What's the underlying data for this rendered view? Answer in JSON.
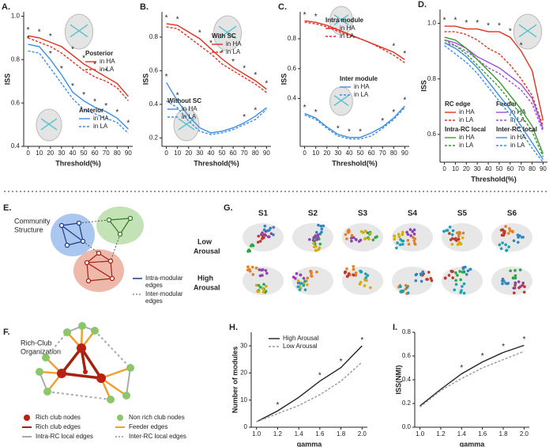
{
  "chart_data": [
    {
      "type": "line",
      "panel": "A.",
      "xlabel": "Threshold(%)",
      "ylabel": "ISS",
      "x": [
        0,
        10,
        20,
        30,
        40,
        50,
        60,
        70,
        80,
        90
      ],
      "xlim": [
        -4,
        94
      ],
      "xticks": [
        0,
        10,
        20,
        30,
        40,
        50,
        60,
        70,
        80,
        90
      ],
      "ylim": [
        0.4,
        1.02
      ],
      "yticks": [
        0.4,
        0.6,
        0.8,
        {
          "value": 1,
          "label": "1.0"
        }
      ],
      "groups": [
        {
          "title": "Posterior",
          "marker": "*",
          "significant_x": [
            0,
            10,
            20,
            40,
            50,
            60,
            70
          ],
          "series": [
            {
              "name": "in HA",
              "color": "#e0301e",
              "style": "solid",
              "values": [
                0.91,
                0.9,
                0.88,
                0.86,
                0.82,
                0.78,
                0.75,
                0.72,
                0.69,
                0.63
              ]
            },
            {
              "name": "in LA",
              "color": "#e0301e",
              "style": "dashed",
              "values": [
                0.9,
                0.88,
                0.86,
                0.83,
                0.79,
                0.75,
                0.72,
                0.7,
                0.67,
                0.61
              ]
            }
          ]
        },
        {
          "title": "Anterior",
          "marker": "*",
          "significant_x": [
            0,
            20,
            30,
            40,
            50,
            60,
            70,
            80,
            90
          ],
          "series": [
            {
              "name": "in HA",
              "color": "#3a8ee6",
              "style": "solid",
              "values": [
                0.87,
                0.86,
                0.8,
                0.73,
                0.65,
                0.61,
                0.58,
                0.56,
                0.53,
                0.48
              ]
            },
            {
              "name": "in LA",
              "color": "#3a8ee6",
              "style": "dashed",
              "values": [
                0.84,
                0.83,
                0.76,
                0.69,
                0.62,
                0.57,
                0.55,
                0.53,
                0.51,
                0.46
              ]
            }
          ]
        }
      ]
    },
    {
      "type": "line",
      "panel": "B.",
      "xlabel": "Threshold(%)",
      "ylabel": "ISS",
      "x": [
        0,
        10,
        20,
        30,
        40,
        50,
        60,
        70,
        80,
        90
      ],
      "xlim": [
        -4,
        94
      ],
      "xticks": [
        0,
        10,
        20,
        30,
        40,
        50,
        60,
        70,
        80,
        90
      ],
      "ylim": [
        0.15,
        0.95
      ],
      "yticks": [
        0.2,
        0.4,
        0.6,
        0.8
      ],
      "groups": [
        {
          "title": "With SC",
          "marker": "*",
          "significant_x": [
            0,
            10,
            30,
            40,
            50,
            60,
            70,
            80,
            90
          ],
          "series": [
            {
              "name": "in HA",
              "color": "#e0301e",
              "style": "solid",
              "values": [
                0.88,
                0.87,
                0.83,
                0.79,
                0.73,
                0.67,
                0.62,
                0.58,
                0.54,
                0.49
              ]
            },
            {
              "name": "in LA",
              "color": "#e0301e",
              "style": "dashed",
              "values": [
                0.86,
                0.85,
                0.8,
                0.75,
                0.7,
                0.64,
                0.6,
                0.56,
                0.52,
                0.47
              ]
            }
          ]
        },
        {
          "title": "Without SC",
          "marker": "*",
          "significant_x": [
            0,
            10,
            70,
            80
          ],
          "series": [
            {
              "name": "in HA",
              "color": "#3a8ee6",
              "style": "solid",
              "values": [
                0.53,
                0.42,
                0.33,
                0.26,
                0.23,
                0.24,
                0.26,
                0.29,
                0.33,
                0.38
              ]
            },
            {
              "name": "in LA",
              "color": "#3a8ee6",
              "style": "dashed",
              "values": [
                0.42,
                0.38,
                0.3,
                0.24,
                0.22,
                0.23,
                0.25,
                0.28,
                0.31,
                0.37
              ]
            }
          ]
        }
      ]
    },
    {
      "type": "line",
      "panel": "C.",
      "xlabel": "Threshold(%)",
      "ylabel": "ISS",
      "x": [
        0,
        10,
        20,
        30,
        40,
        50,
        60,
        70,
        80,
        90
      ],
      "xlim": [
        -4,
        94
      ],
      "xticks": [
        0,
        10,
        20,
        30,
        40,
        50,
        60,
        70,
        80,
        90
      ],
      "ylim": [
        0.08,
        0.98
      ],
      "yticks": [
        0.4,
        0.6,
        0.8
      ],
      "groups": [
        {
          "title": "Intra module",
          "marker": "*",
          "significant_x": [
            0,
            10,
            80,
            90
          ],
          "series": [
            {
              "name": "in HA",
              "color": "#e0301e",
              "style": "solid",
              "values": [
                0.92,
                0.91,
                0.89,
                0.86,
                0.83,
                0.8,
                0.77,
                0.74,
                0.71,
                0.66
              ]
            },
            {
              "name": "in LA",
              "color": "#e0301e",
              "style": "dashed",
              "values": [
                0.91,
                0.9,
                0.88,
                0.85,
                0.82,
                0.8,
                0.77,
                0.73,
                0.69,
                0.64
              ]
            }
          ]
        },
        {
          "title": "Inter module",
          "marker": "*",
          "significant_x": [
            0,
            10,
            30,
            40,
            50,
            70,
            80,
            90
          ],
          "series": [
            {
              "name": "in HA",
              "color": "#3a8ee6",
              "style": "solid",
              "values": [
                0.3,
                0.27,
                0.21,
                0.16,
                0.14,
                0.14,
                0.17,
                0.21,
                0.27,
                0.35
              ]
            },
            {
              "name": "in LA",
              "color": "#3a8ee6",
              "style": "dashed",
              "values": [
                0.29,
                0.26,
                0.2,
                0.15,
                0.13,
                0.13,
                0.15,
                0.2,
                0.26,
                0.34
              ]
            }
          ]
        }
      ]
    },
    {
      "type": "line",
      "panel": "D.",
      "xlabel": "Threshold(%)",
      "ylabel": "ISS",
      "x": [
        0,
        10,
        20,
        30,
        40,
        50,
        60,
        70,
        80,
        90
      ],
      "xlim": [
        -4,
        94
      ],
      "xticks": [
        0,
        10,
        20,
        30,
        40,
        50,
        60,
        70,
        80,
        90
      ],
      "ylim": [
        0.5,
        1.05
      ],
      "yticks": [
        0.6,
        0.8,
        {
          "value": 1,
          "label": "1.0"
        }
      ],
      "groups": [
        {
          "title": "RC edge",
          "marker": "*",
          "significant_x": [
            0,
            10,
            20,
            30,
            40,
            50,
            60,
            70
          ],
          "series": [
            {
              "name": "in HA",
              "color": "#e0301e",
              "style": "solid",
              "values": [
                0.99,
                0.99,
                0.98,
                0.98,
                0.97,
                0.97,
                0.95,
                0.9,
                0.83,
                0.65
              ]
            },
            {
              "name": "in LA",
              "color": "#e0301e",
              "style": "dashed",
              "values": [
                0.97,
                0.97,
                0.96,
                0.94,
                0.91,
                0.89,
                0.85,
                0.8,
                0.74,
                0.63
              ]
            }
          ]
        },
        {
          "title": "Feeder",
          "series": [
            {
              "name": "in HA",
              "color": "#9b4fd6",
              "style": "solid",
              "values": [
                0.94,
                0.93,
                0.91,
                0.88,
                0.86,
                0.84,
                0.81,
                0.78,
                0.73,
                0.62
              ]
            },
            {
              "name": "in LA",
              "color": "#9b4fd6",
              "style": "dashed",
              "values": [
                0.93,
                0.92,
                0.9,
                0.87,
                0.84,
                0.82,
                0.79,
                0.76,
                0.71,
                0.61
              ]
            }
          ]
        },
        {
          "title": "Intra-RC local",
          "series": [
            {
              "name": "in HA",
              "color": "#3a9a2e",
              "style": "solid",
              "values": [
                0.95,
                0.94,
                0.91,
                0.87,
                0.83,
                0.79,
                0.74,
                0.69,
                0.63,
                0.53
              ]
            },
            {
              "name": "in LA",
              "color": "#3a9a2e",
              "style": "dashed",
              "values": [
                0.94,
                0.92,
                0.89,
                0.85,
                0.81,
                0.77,
                0.72,
                0.67,
                0.61,
                0.52
              ]
            }
          ]
        },
        {
          "title": "Inter-RC local",
          "series": [
            {
              "name": "in HA",
              "color": "#3a8ee6",
              "style": "solid",
              "values": [
                0.93,
                0.91,
                0.88,
                0.84,
                0.79,
                0.74,
                0.69,
                0.63,
                0.57,
                0.51
              ]
            },
            {
              "name": "in LA",
              "color": "#3a8ee6",
              "style": "dashed",
              "values": [
                0.92,
                0.89,
                0.86,
                0.82,
                0.77,
                0.72,
                0.67,
                0.61,
                0.55,
                0.5
              ]
            }
          ]
        }
      ]
    },
    {
      "type": "line",
      "panel": "H.",
      "xlabel": "gamma",
      "ylabel": "Number of  modules",
      "x": [
        1.0,
        1.2,
        1.4,
        1.6,
        1.8,
        2.0
      ],
      "xlim": [
        0.95,
        2.05
      ],
      "xticks": [
        {
          "value": 1,
          "label": "1.0"
        },
        1.2,
        1.4,
        1.6,
        1.8,
        {
          "value": 2,
          "label": "2.0"
        }
      ],
      "ylim": [
        0,
        35
      ],
      "yticks": [
        0,
        10,
        20,
        30
      ],
      "groups": [
        {
          "marker": "*",
          "significant_x": [
            1.2,
            1.6,
            1.8,
            2.0
          ],
          "series": [
            {
              "name": "High Arousal",
              "color": "#222222",
              "style": "solid",
              "values": [
                2,
                6,
                11,
                17,
                22,
                30
              ]
            },
            {
              "name": "Low Arousal",
              "color": "#999999",
              "style": "dashed",
              "values": [
                2,
                5,
                8,
                12,
                17,
                24
              ]
            }
          ]
        }
      ]
    },
    {
      "type": "line",
      "panel": "I.",
      "xlabel": "gamma",
      "ylabel": "ISS(NMI)",
      "x": [
        1.0,
        1.2,
        1.4,
        1.6,
        1.8,
        2.0
      ],
      "xlim": [
        0.95,
        2.05
      ],
      "xticks": [
        {
          "value": 1,
          "label": "1.0"
        },
        1.2,
        1.4,
        1.6,
        1.8,
        {
          "value": 2,
          "label": "2.0"
        }
      ],
      "ylim": [
        0,
        0.8
      ],
      "yticks": [
        {
          "value": 0,
          "label": "0.0"
        },
        0.2,
        0.4,
        0.6,
        0.8
      ],
      "groups": [
        {
          "marker": "*",
          "significant_x": [
            1.4,
            1.6,
            1.8,
            2.0
          ],
          "series": [
            {
              "name": "High Arousal",
              "color": "#222222",
              "style": "solid",
              "values": [
                0.18,
                0.32,
                0.45,
                0.55,
                0.63,
                0.69
              ]
            },
            {
              "name": "Low Arousal",
              "color": "#999999",
              "style": "dashed",
              "values": [
                0.17,
                0.31,
                0.41,
                0.5,
                0.57,
                0.64
              ]
            }
          ]
        }
      ]
    }
  ],
  "diagram_E": {
    "panel": "E.",
    "title_lines": [
      "Community",
      "Structure"
    ],
    "legend": [
      {
        "lines": [
          "Intra-modular",
          "edges"
        ]
      },
      {
        "lines": [
          "Inter-modular",
          "edges"
        ]
      }
    ]
  },
  "diagram_F": {
    "panel": "F.",
    "title_lines": [
      "Rich-Club",
      "Organization"
    ],
    "legend": [
      "Rich club nodes",
      "Non rich club nodes",
      "Rich club edges",
      "Feeder edges",
      "Intra-RC local edges",
      "Inter-RC local edges"
    ]
  },
  "diagram_G": {
    "panel": "G.",
    "columns": [
      "S1",
      "S2",
      "S3",
      "S4",
      "S5",
      "S6"
    ],
    "rows": [
      {
        "lines": [
          "Low",
          "Arousal"
        ]
      },
      {
        "lines": [
          "High",
          "Arousal"
        ]
      }
    ]
  }
}
